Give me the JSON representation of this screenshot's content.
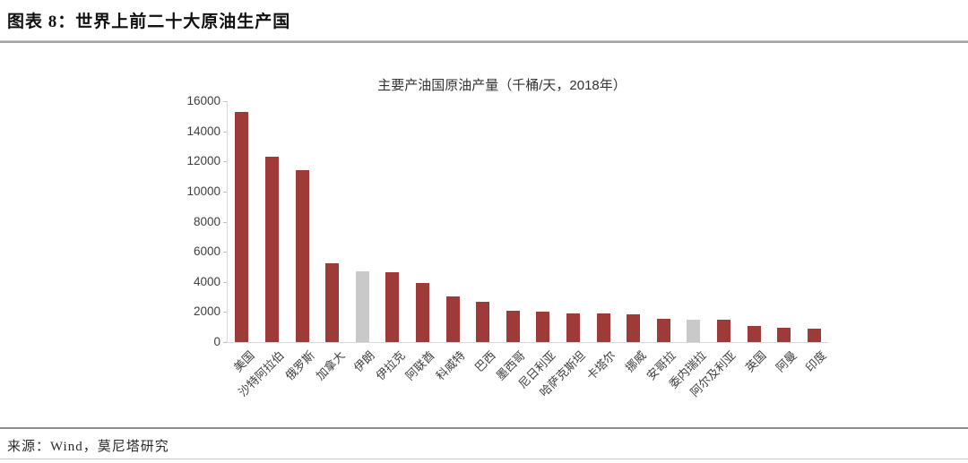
{
  "page": {
    "header_title": "图表 8：世界上前二十大原油生产国",
    "source_note": "来源：Wind，莫尼塔研究"
  },
  "chart_data": {
    "type": "bar",
    "title": "主要产油国原油产量（千桶/天，2018年）",
    "xlabel": "",
    "ylabel": "",
    "categories": [
      "美国",
      "沙特阿拉伯",
      "俄罗斯",
      "加拿大",
      "伊朗",
      "伊拉克",
      "阿联酋",
      "科威特",
      "巴西",
      "墨西哥",
      "尼日利亚",
      "哈萨克斯坦",
      "卡塔尔",
      "挪威",
      "安哥拉",
      "委内瑞拉",
      "阿尔及利亚",
      "英国",
      "阿曼",
      "印度"
    ],
    "values": [
      15311,
      12287,
      11438,
      5208,
      4715,
      4614,
      3942,
      3049,
      2683,
      2068,
      2051,
      1927,
      1879,
      1844,
      1534,
      1514,
      1510,
      1085,
      978,
      869
    ],
    "gray_indices": [
      4,
      15
    ],
    "ylim": [
      0,
      16000
    ],
    "ytick_step": 2000,
    "yticks": [
      0,
      2000,
      4000,
      6000,
      8000,
      10000,
      12000,
      14000,
      16000
    ],
    "grid": false,
    "legend": "none",
    "colors": {
      "bar": "#9e3b39",
      "bar_gray": "#c9c9c9",
      "axis": "#d9d9d9",
      "tick": "#bfbfbf",
      "text": "#3f3f3f"
    }
  }
}
